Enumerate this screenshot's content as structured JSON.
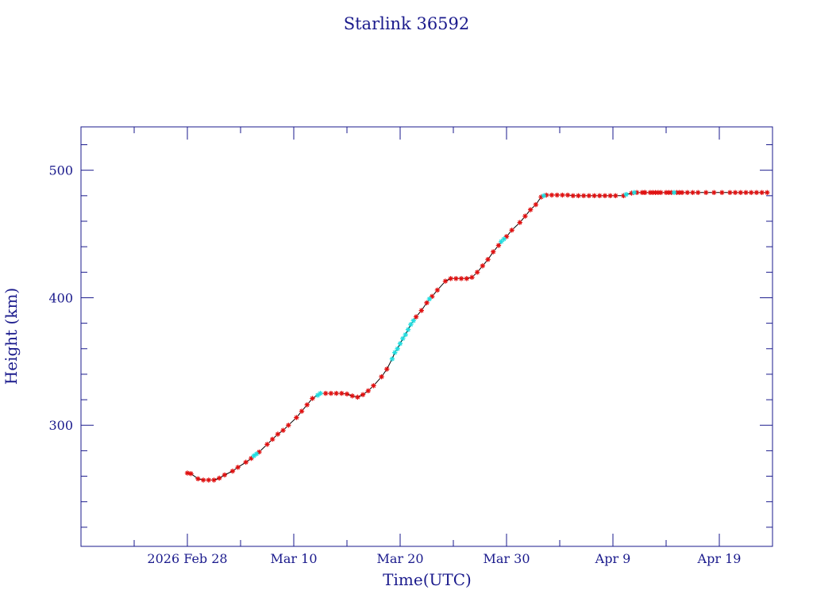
{
  "chart_data": {
    "type": "scatter",
    "title": "Starlink 36592",
    "xlabel": "Time(UTC)",
    "ylabel": "Height (km)",
    "x_axis": {
      "unit": "date",
      "range": [
        "2026-02-18",
        "2026-04-24"
      ],
      "tick_labels": [
        {
          "date": "2026-02-28",
          "label": "2026 Feb 28"
        },
        {
          "date": "2026-03-10",
          "label": "Mar 10"
        },
        {
          "date": "2026-03-20",
          "label": "Mar 20"
        },
        {
          "date": "2026-03-30",
          "label": "Mar 30"
        },
        {
          "date": "2026-04-09",
          "label": "Apr  9"
        },
        {
          "date": "2026-04-19",
          "label": "Apr 19"
        }
      ]
    },
    "y_axis": {
      "range": [
        205,
        534
      ],
      "major_ticks": [
        300,
        400,
        500
      ],
      "tick_labels": [
        "300",
        "400",
        "500"
      ],
      "minor_step": 20
    },
    "grid": false,
    "legend": "none",
    "colors": {
      "axis": "#1a1a8c",
      "line": "#000000",
      "red_marker": "#e01010",
      "cyan_marker": "#22dde0"
    },
    "series": [
      {
        "marker": "star",
        "color": "red",
        "points": [
          [
            "2026-02-28 00:00",
            262.5
          ],
          [
            "2026-02-28 08:00",
            262.0
          ],
          [
            "2026-02-29 00:00",
            258.0
          ],
          [
            "2026-03-01 12:00",
            257.0
          ],
          [
            "2026-03-02 00:00",
            257.0
          ],
          [
            "2026-03-02 12:00",
            257.0
          ],
          [
            "2026-03-03 00:00",
            258.5
          ],
          [
            "2026-03-03 12:00",
            261.0
          ],
          [
            "2026-03-04 06:00",
            264.0
          ],
          [
            "2026-03-04 18:00",
            267.0
          ],
          [
            "2026-03-05 12:00",
            271.0
          ],
          [
            "2026-03-06 00:00",
            274.0
          ],
          [
            "2026-03-06 18:00",
            279.0
          ],
          [
            "2026-03-07 12:00",
            285.0
          ],
          [
            "2026-03-08 00:00",
            289.0
          ],
          [
            "2026-03-08 12:00",
            293.0
          ],
          [
            "2026-03-09 00:00",
            296.0
          ],
          [
            "2026-03-09 12:00",
            300.0
          ],
          [
            "2026-03-10 06:00",
            306.0
          ],
          [
            "2026-03-10 18:00",
            311.0
          ],
          [
            "2026-03-11 06:00",
            316.0
          ],
          [
            "2026-03-11 18:00",
            321.0
          ],
          [
            "2026-03-13 00:00",
            325.0
          ],
          [
            "2026-03-13 12:00",
            325.0
          ],
          [
            "2026-03-14 00:00",
            325.0
          ],
          [
            "2026-03-14 12:00",
            325.0
          ],
          [
            "2026-03-15 00:00",
            324.5
          ],
          [
            "2026-03-15 12:00",
            323.0
          ],
          [
            "2026-03-16 00:00",
            322.0
          ],
          [
            "2026-03-16 12:00",
            324.0
          ],
          [
            "2026-03-17 00:00",
            327.0
          ],
          [
            "2026-03-17 12:00",
            331.0
          ],
          [
            "2026-03-18 06:00",
            338.0
          ],
          [
            "2026-03-18 18:00",
            344.0
          ],
          [
            "2026-03-21 12:00",
            385.0
          ],
          [
            "2026-03-22 00:00",
            390.0
          ],
          [
            "2026-03-22 12:00",
            396.0
          ],
          [
            "2026-03-23 00:00",
            401.0
          ],
          [
            "2026-03-23 12:00",
            406.0
          ],
          [
            "2026-03-24 06:00",
            413.0
          ],
          [
            "2026-03-24 18:00",
            415.0
          ],
          [
            "2026-03-25 06:00",
            415.0
          ],
          [
            "2026-03-25 18:00",
            415.0
          ],
          [
            "2026-03-26 06:00",
            415.0
          ],
          [
            "2026-03-26 18:00",
            416.0
          ],
          [
            "2026-03-27 06:00",
            420.0
          ],
          [
            "2026-03-27 18:00",
            425.0
          ],
          [
            "2026-03-28 06:00",
            430.0
          ],
          [
            "2026-03-28 18:00",
            436.0
          ],
          [
            "2026-03-29 06:00",
            441.0
          ],
          [
            "2026-03-30 00:00",
            448.0
          ],
          [
            "2026-03-30 12:00",
            453.0
          ],
          [
            "2026-03-31 06:00",
            459.0
          ],
          [
            "2026-03-31 18:00",
            464.0
          ],
          [
            "2026-04-01 06:00",
            469.0
          ],
          [
            "2026-04-01 18:00",
            473.0
          ],
          [
            "2026-04-02 06:00",
            479.0
          ],
          [
            "2026-04-02 18:00",
            480.5
          ],
          [
            "2026-04-03 06:00",
            480.5
          ],
          [
            "2026-04-03 18:00",
            480.5
          ],
          [
            "2026-04-04 06:00",
            480.5
          ],
          [
            "2026-04-04 18:00",
            480.5
          ],
          [
            "2026-04-05 06:00",
            480.0
          ],
          [
            "2026-04-05 18:00",
            480.0
          ],
          [
            "2026-04-06 06:00",
            480.0
          ],
          [
            "2026-04-06 18:00",
            480.0
          ],
          [
            "2026-04-07 06:00",
            480.0
          ],
          [
            "2026-04-07 18:00",
            480.0
          ],
          [
            "2026-04-08 06:00",
            480.0
          ],
          [
            "2026-04-08 18:00",
            480.0
          ],
          [
            "2026-04-09 06:00",
            480.0
          ],
          [
            "2026-04-10 00:00",
            480.0
          ],
          [
            "2026-04-10 18:00",
            482.0
          ],
          [
            "2026-04-12 00:00",
            482.5
          ],
          [
            "2026-04-12 12:00",
            482.5
          ],
          [
            "2026-04-13 00:00",
            482.5
          ],
          [
            "2026-04-13 12:00",
            482.5
          ],
          [
            "2026-04-14 06:00",
            482.5
          ],
          [
            "2026-04-15 00:00",
            482.5
          ],
          [
            "2026-04-15 12:00",
            482.5
          ],
          [
            "2026-04-16 00:00",
            482.5
          ],
          [
            "2026-04-16 12:00",
            482.5
          ],
          [
            "2026-04-17 00:00",
            482.5
          ],
          [
            "2026-04-17 18:00",
            482.5
          ],
          [
            "2026-04-18 12:00",
            482.5
          ],
          [
            "2026-04-19 06:00",
            482.5
          ],
          [
            "2026-04-20 00:00",
            482.5
          ],
          [
            "2026-04-20 12:00",
            482.5
          ],
          [
            "2026-04-21 00:00",
            482.5
          ],
          [
            "2026-04-21 12:00",
            482.5
          ],
          [
            "2026-04-22 00:00",
            482.5
          ],
          [
            "2026-04-22 12:00",
            482.5
          ],
          [
            "2026-04-23 00:00",
            482.5
          ],
          [
            "2026-04-23 12:00",
            482.5
          ],
          [
            "2026-04-12 00:00",
            482.5
          ],
          [
            "2026-04-12 18:00",
            482.5
          ],
          [
            "2026-04-13 06:00",
            482.5
          ],
          [
            "2026-04-14 00:00",
            482.5
          ],
          [
            "2026-04-14 12:00",
            482.5
          ],
          [
            "2026-04-15 06:00",
            482.5
          ],
          [
            "2026-04-11 06:00",
            482.5
          ],
          [
            "2026-04-11 18:00",
            482.5
          ]
        ]
      },
      {
        "marker": "star",
        "color": "cyan",
        "points": [
          [
            "2026-03-06 06:00",
            276.0
          ],
          [
            "2026-03-06 12:00",
            277.5
          ],
          [
            "2026-03-12 06:00",
            323.5
          ],
          [
            "2026-03-12 12:00",
            325.0
          ],
          [
            "2026-03-19 06:00",
            352.0
          ],
          [
            "2026-03-19 12:00",
            357.0
          ],
          [
            "2026-03-19 18:00",
            360.0
          ],
          [
            "2026-03-20 00:00",
            364.0
          ],
          [
            "2026-03-20 06:00",
            368.0
          ],
          [
            "2026-03-20 12:00",
            371.0
          ],
          [
            "2026-03-20 18:00",
            375.0
          ],
          [
            "2026-03-21 00:00",
            379.0
          ],
          [
            "2026-03-21 06:00",
            382.0
          ],
          [
            "2026-03-22 18:00",
            399.0
          ],
          [
            "2026-03-29 12:00",
            444.0
          ],
          [
            "2026-03-29 18:00",
            446.0
          ],
          [
            "2026-04-02 12:00",
            480.0
          ],
          [
            "2026-04-10 06:00",
            481.0
          ],
          [
            "2026-04-11 00:00",
            482.5
          ],
          [
            "2026-04-14 18:00",
            482.5
          ]
        ]
      }
    ]
  }
}
